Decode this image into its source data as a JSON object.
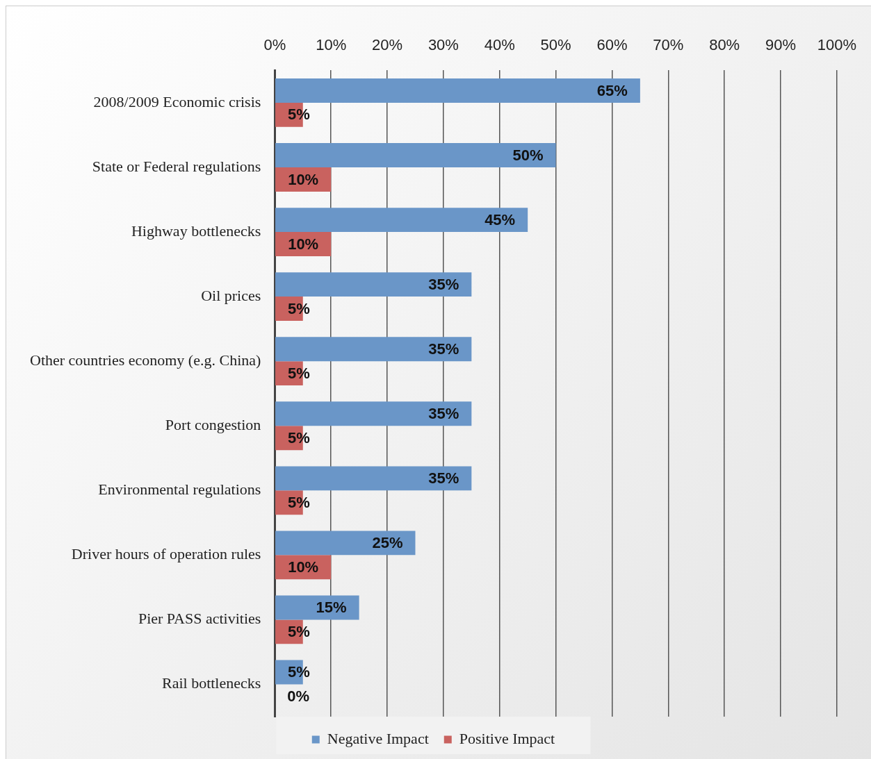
{
  "chart_data": {
    "type": "bar",
    "orientation": "horizontal",
    "categories": [
      "2008/2009 Economic crisis",
      "State or Federal regulations",
      "Highway bottlenecks",
      "Oil prices",
      "Other countries economy (e.g. China)",
      "Port congestion",
      "Environmental regulations",
      "Driver hours of operation rules",
      "Pier PASS activities",
      "Rail bottlenecks"
    ],
    "series": [
      {
        "name": "Negative Impact",
        "color": "#6a96c8",
        "values": [
          65,
          50,
          45,
          35,
          35,
          35,
          35,
          25,
          15,
          5
        ],
        "value_labels": [
          "65%",
          "50%",
          "45%",
          "35%",
          "35%",
          "35%",
          "35%",
          "25%",
          "15%",
          "5%"
        ]
      },
      {
        "name": "Positive Impact",
        "color": "#c9625f",
        "values": [
          5,
          10,
          10,
          5,
          5,
          5,
          5,
          10,
          5,
          0
        ],
        "value_labels": [
          "5%",
          "10%",
          "10%",
          "5%",
          "5%",
          "5%",
          "5%",
          "10%",
          "5%",
          "0%"
        ]
      }
    ],
    "xlim": [
      0,
      100
    ],
    "xticks": [
      {
        "value": 0,
        "label": "0%"
      },
      {
        "value": 10,
        "label": "10%"
      },
      {
        "value": 20,
        "label": "20%"
      },
      {
        "value": 30,
        "label": "30%"
      },
      {
        "value": 40,
        "label": "40%"
      },
      {
        "value": 50,
        "label": "50%"
      },
      {
        "value": 60,
        "label": "60%"
      },
      {
        "value": 70,
        "label": "70%"
      },
      {
        "value": 80,
        "label": "80%"
      },
      {
        "value": 90,
        "label": "90%"
      },
      {
        "value": 100,
        "label": "100%"
      }
    ],
    "grid": "x",
    "legend": "bottom"
  }
}
